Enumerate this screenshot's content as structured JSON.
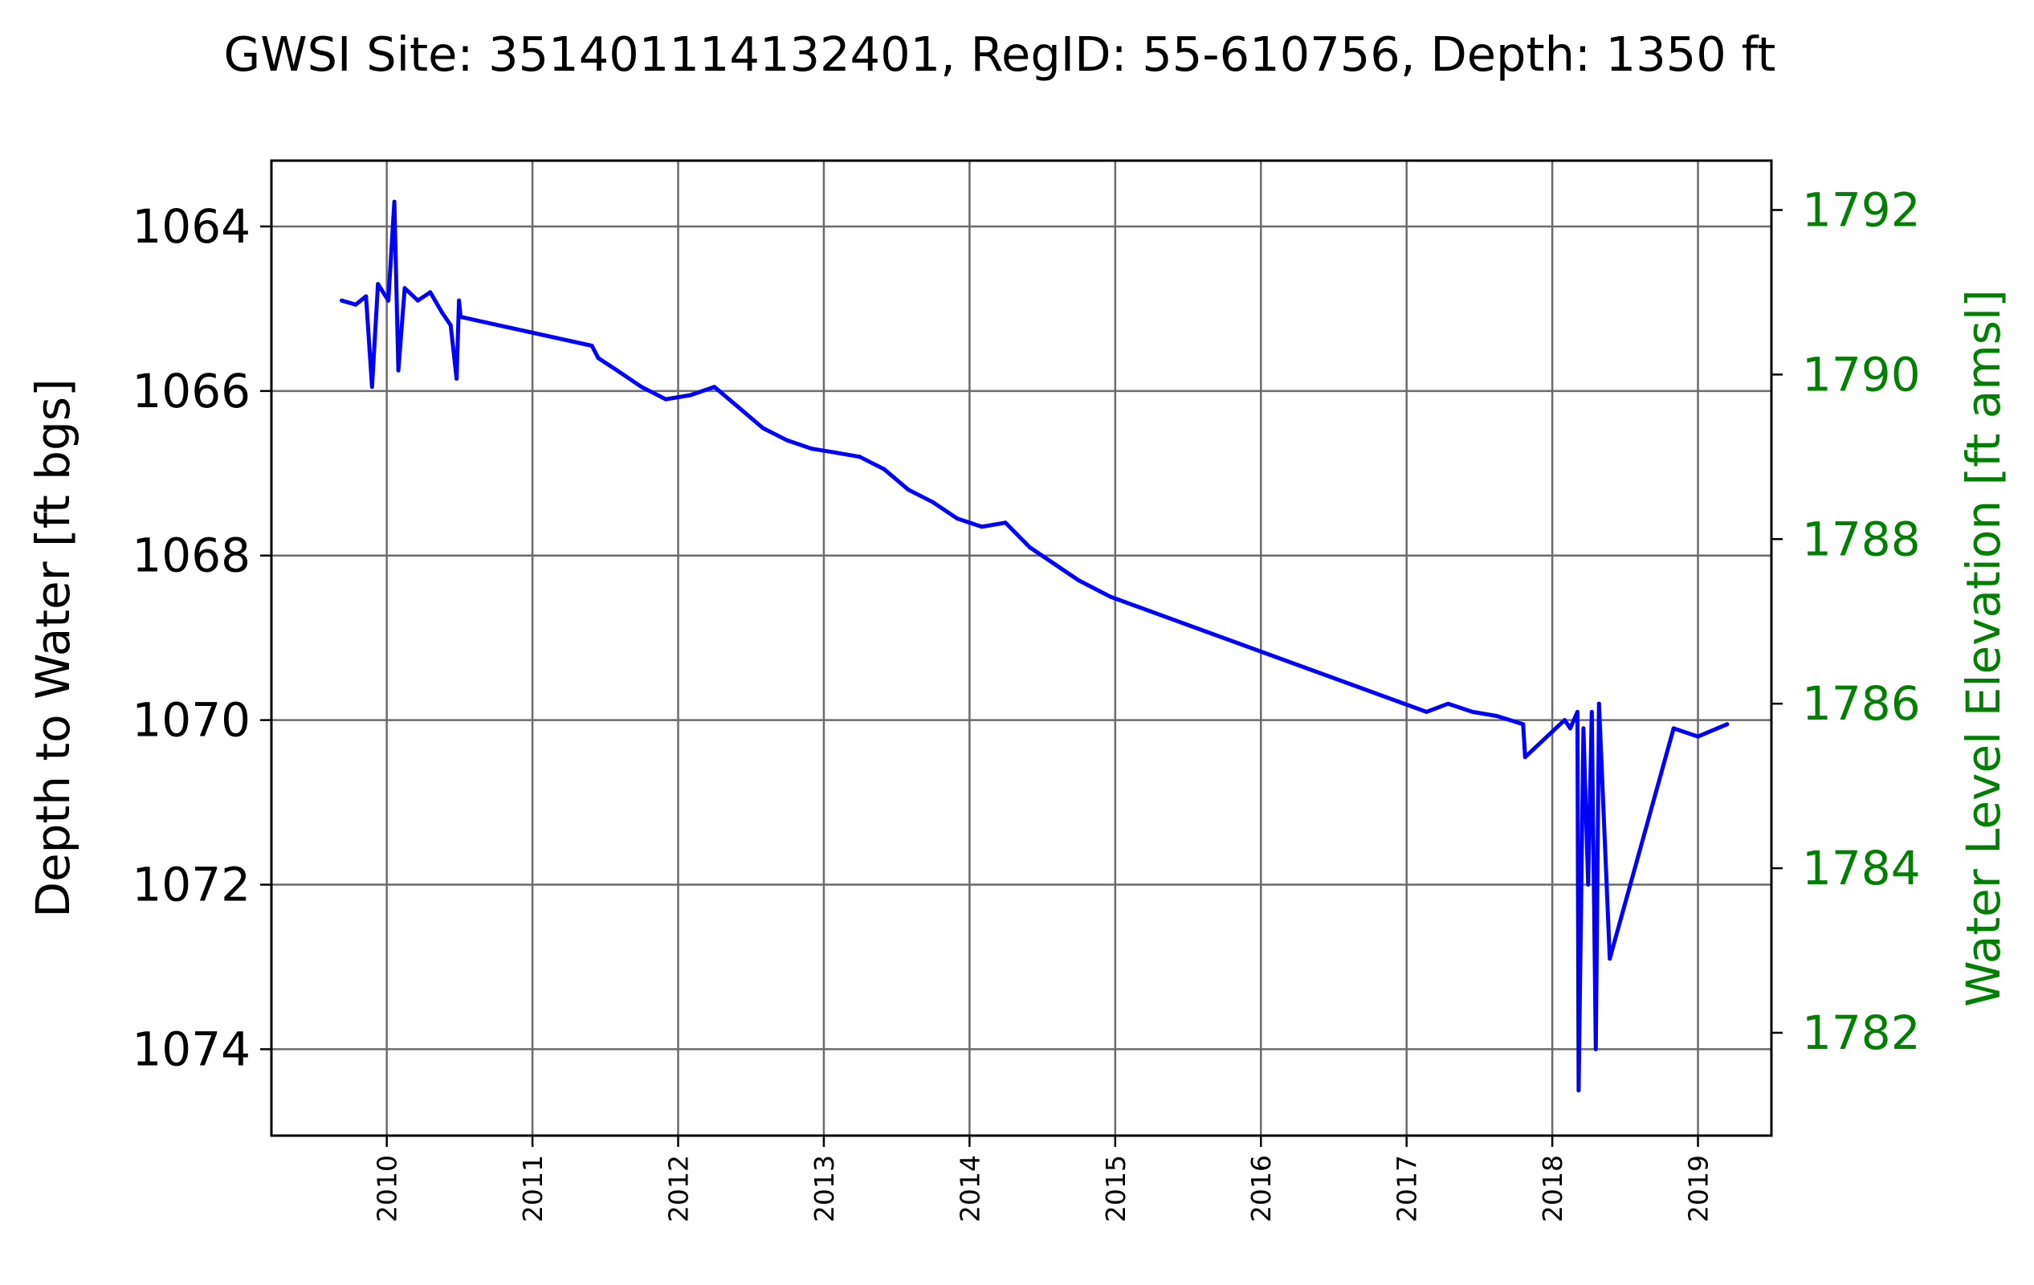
{
  "chart_data": {
    "type": "line",
    "title": "GWSI Site: 351401114132401, RegID: 55-610756, Depth: 1350 ft",
    "xlabel": "",
    "ylabel": "Depth to Water [ft bgs]",
    "y2label": "Water Level Elevation [ft amsl]",
    "x_ticks": [
      "2010",
      "2011",
      "2012",
      "2013",
      "2014",
      "2015",
      "2016",
      "2017",
      "2018",
      "2019"
    ],
    "y_ticks": [
      "1064",
      "1066",
      "1068",
      "1070",
      "1072",
      "1074"
    ],
    "y2_ticks": [
      "1792",
      "1790",
      "1788",
      "1786",
      "1784",
      "1782"
    ],
    "xlim": [
      "2009-03-18",
      "2019-07-04"
    ],
    "ylim": [
      1075.05,
      1063.2
    ],
    "y2_tick_positions": [
      1063.8,
      1065.8,
      1067.8,
      1069.8,
      1071.8,
      1073.8
    ],
    "y_inverted": true,
    "grid": true,
    "colors": {
      "series": "#0000ff",
      "secondary_axis": "#008000",
      "grid": "#6b6b6b",
      "axes": "#000000"
    },
    "series": [
      {
        "values": [
          [
            "2009-09-10",
            1064.9
          ],
          [
            "2009-10-15",
            1064.95
          ],
          [
            "2009-11-10",
            1064.85
          ],
          [
            "2009-11-25",
            1065.95
          ],
          [
            "2009-12-10",
            1064.7
          ],
          [
            "2010-01-05",
            1064.9
          ],
          [
            "2010-01-20",
            1063.7
          ],
          [
            "2010-01-30",
            1065.75
          ],
          [
            "2010-02-15",
            1064.75
          ],
          [
            "2010-03-20",
            1064.9
          ],
          [
            "2010-04-20",
            1064.8
          ],
          [
            "2010-05-20",
            1065.05
          ],
          [
            "2010-06-10",
            1065.2
          ],
          [
            "2010-06-25",
            1065.85
          ],
          [
            "2010-07-01",
            1064.9
          ],
          [
            "2010-07-05",
            1065.1
          ],
          [
            "2011-05-30",
            1065.45
          ],
          [
            "2011-06-15",
            1065.6
          ],
          [
            "2011-08-01",
            1065.75
          ],
          [
            "2011-10-01",
            1065.95
          ],
          [
            "2011-12-01",
            1066.1
          ],
          [
            "2012-02-01",
            1066.05
          ],
          [
            "2012-04-01",
            1065.95
          ],
          [
            "2012-06-01",
            1066.2
          ],
          [
            "2012-08-01",
            1066.45
          ],
          [
            "2012-10-01",
            1066.6
          ],
          [
            "2012-12-01",
            1066.7
          ],
          [
            "2013-02-01",
            1066.75
          ],
          [
            "2013-04-01",
            1066.8
          ],
          [
            "2013-06-01",
            1066.95
          ],
          [
            "2013-08-01",
            1067.2
          ],
          [
            "2013-10-01",
            1067.35
          ],
          [
            "2013-12-01",
            1067.55
          ],
          [
            "2014-02-01",
            1067.65
          ],
          [
            "2014-04-01",
            1067.6
          ],
          [
            "2014-06-01",
            1067.9
          ],
          [
            "2014-08-01",
            1068.1
          ],
          [
            "2014-10-01",
            1068.3
          ],
          [
            "2014-12-20",
            1068.5
          ],
          [
            "2017-02-20",
            1069.9
          ],
          [
            "2017-04-15",
            1069.8
          ],
          [
            "2017-06-15",
            1069.9
          ],
          [
            "2017-08-15",
            1069.95
          ],
          [
            "2017-10-20",
            1070.05
          ],
          [
            "2017-10-25",
            1070.45
          ],
          [
            "2018-02-01",
            1070.0
          ],
          [
            "2018-02-15",
            1070.1
          ],
          [
            "2018-03-05",
            1069.9
          ],
          [
            "2018-03-08",
            1074.5
          ],
          [
            "2018-03-20",
            1070.1
          ],
          [
            "2018-04-01",
            1072.0
          ],
          [
            "2018-04-10",
            1069.9
          ],
          [
            "2018-04-20",
            1074.0
          ],
          [
            "2018-04-28",
            1069.8
          ],
          [
            "2018-05-25",
            1072.9
          ],
          [
            "2018-11-01",
            1070.1
          ],
          [
            "2019-01-01",
            1070.2
          ],
          [
            "2019-03-15",
            1070.05
          ]
        ]
      }
    ]
  }
}
